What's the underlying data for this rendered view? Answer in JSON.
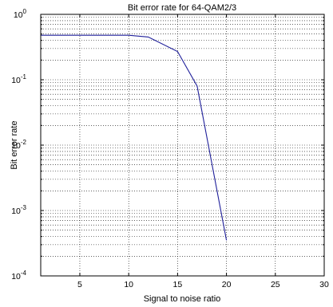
{
  "chart_data": {
    "type": "line",
    "title": "Bit error rate for 64-QAM2/3",
    "xlabel": "Signal to noise ratio",
    "ylabel": "Bit error rate",
    "xlim": [
      1,
      30
    ],
    "ylim": [
      0.0001,
      1
    ],
    "yscale": "log",
    "grid": true,
    "x_ticks": [
      "5",
      "10",
      "15",
      "20",
      "25",
      "30"
    ],
    "y_tick_labels": [
      {
        "base": "10",
        "exp": "0"
      },
      {
        "base": "10",
        "exp": "-1"
      },
      {
        "base": "10",
        "exp": "-2"
      },
      {
        "base": "10",
        "exp": "-3"
      },
      {
        "base": "10",
        "exp": "-4"
      }
    ],
    "series": [
      {
        "color": "#1f1f9a",
        "x": [
          1,
          10,
          12,
          15,
          17,
          20
        ],
        "y": [
          0.48,
          0.48,
          0.45,
          0.27,
          0.08,
          0.00035
        ]
      }
    ]
  }
}
